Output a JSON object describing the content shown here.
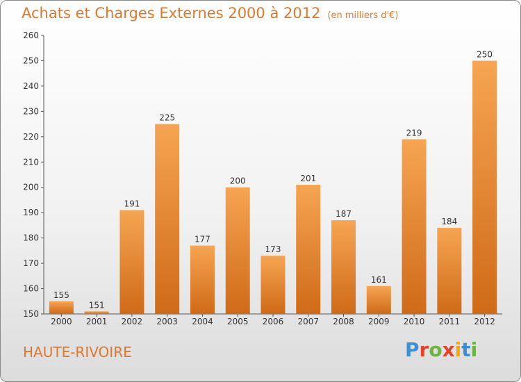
{
  "header": {
    "title": "Achats et Charges Externes 2000 à 2012",
    "unit": "(en milliers d'€)"
  },
  "footer": {
    "place": "HAUTE-RIVOIRE",
    "logo": "Proxiti"
  },
  "colors": {
    "accent": "#e0772b",
    "bar_top": "#f6a552",
    "bar_bottom": "#cf6a18",
    "logo_letters": [
      "#3a8fd8",
      "#e0452b",
      "#6cb33f",
      "#e0452b",
      "#f2a900",
      "#3a8fd8",
      "#6cb33f"
    ]
  },
  "chart_data": {
    "type": "bar",
    "title": "Achats et Charges Externes 2000 à 2012",
    "subtitle": "(en milliers d'€)",
    "categories": [
      "2000",
      "2001",
      "2002",
      "2003",
      "2004",
      "2005",
      "2006",
      "2007",
      "2008",
      "2009",
      "2010",
      "2011",
      "2012"
    ],
    "values": [
      155,
      151,
      191,
      225,
      177,
      200,
      173,
      201,
      187,
      161,
      219,
      184,
      250
    ],
    "ylim": [
      150,
      260
    ],
    "yticks": [
      150,
      160,
      170,
      180,
      190,
      200,
      210,
      220,
      230,
      240,
      250,
      260
    ],
    "grid": false,
    "data_labels": true
  }
}
